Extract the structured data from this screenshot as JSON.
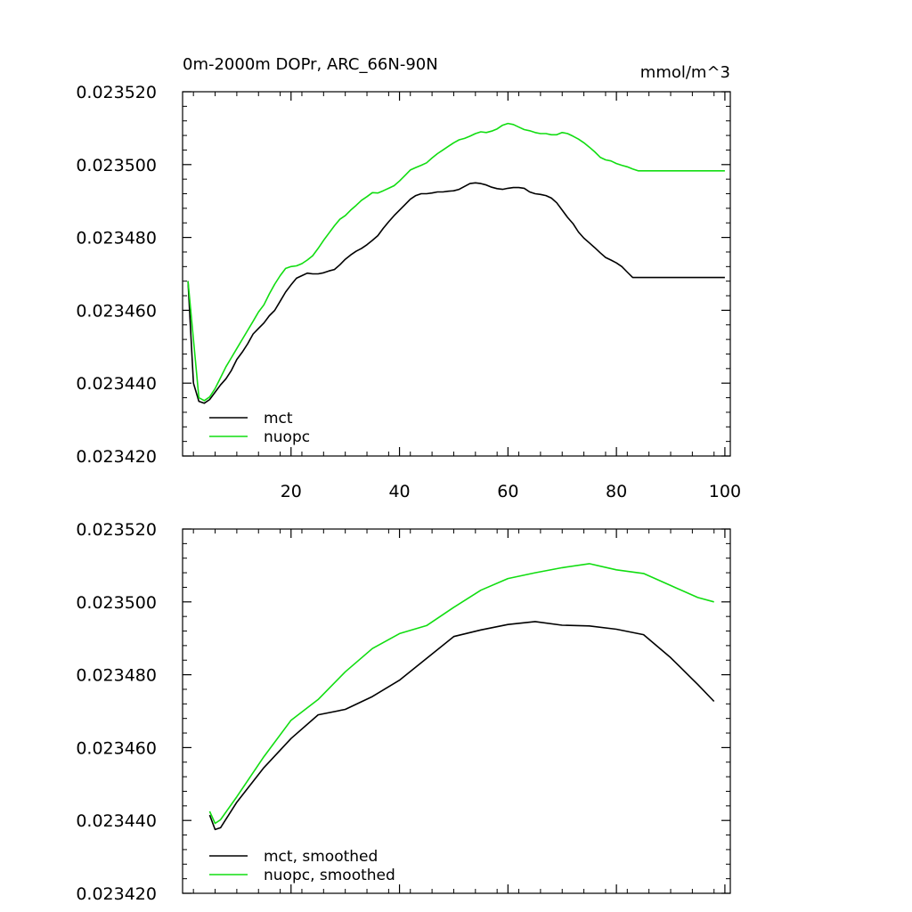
{
  "colors": {
    "mct": "#000000",
    "nuopc": "#11dd11",
    "axis": "#000000"
  },
  "chart_data": [
    {
      "type": "line",
      "title": "0m-2000m DOPr, ARC_66N-90N",
      "units_label": "mmol/m^3",
      "xlim": [
        0,
        101
      ],
      "ylim": [
        0.02342,
        0.02352
      ],
      "xticks": [
        20,
        40,
        60,
        80,
        100
      ],
      "xtick_labels": [
        "20",
        "40",
        "60",
        "80",
        "100"
      ],
      "yticks": [
        0.02342,
        0.02344,
        0.02346,
        0.02348,
        0.0235,
        0.02352
      ],
      "ytick_labels": [
        "0.023420",
        "0.023440",
        "0.023460",
        "0.023480",
        "0.023500",
        "0.023520"
      ],
      "legend_position": "bottom-left",
      "series": [
        {
          "name": "mct",
          "color_key": "mct",
          "x": [
            1,
            2,
            3,
            4,
            5,
            6,
            7,
            8,
            9,
            10,
            11,
            12,
            13,
            14,
            15,
            16,
            17,
            18,
            19,
            20,
            21,
            22,
            23,
            24,
            25,
            26,
            27,
            28,
            29,
            30,
            31,
            32,
            33,
            34,
            35,
            36,
            37,
            38,
            39,
            40,
            41,
            42,
            43,
            44,
            45,
            46,
            47,
            48,
            49,
            50,
            51,
            52,
            53,
            54,
            55,
            56,
            57,
            58,
            59,
            60,
            61,
            62,
            63,
            64,
            65,
            66,
            67,
            68,
            69,
            70,
            71,
            72,
            73,
            74,
            75,
            76,
            77,
            78,
            79,
            80,
            81,
            82,
            83,
            84,
            85,
            86,
            87,
            88,
            89,
            90,
            91,
            92,
            93,
            94,
            95,
            96,
            97,
            98,
            99,
            100
          ],
          "y": [
            0.023468,
            0.02344,
            0.023435,
            0.0234345,
            0.0234355,
            0.0234375,
            0.0234395,
            0.0234412,
            0.0234435,
            0.0234465,
            0.0234485,
            0.0234508,
            0.0234535,
            0.023455,
            0.0234565,
            0.0234585,
            0.02346,
            0.0234625,
            0.023465,
            0.023467,
            0.0234688,
            0.0234695,
            0.0234702,
            0.02347,
            0.02347,
            0.0234703,
            0.0234708,
            0.0234712,
            0.0234725,
            0.023474,
            0.0234752,
            0.0234762,
            0.023477,
            0.023478,
            0.0234792,
            0.0234805,
            0.0234825,
            0.0234843,
            0.023486,
            0.0234875,
            0.023489,
            0.0234905,
            0.0234915,
            0.023492,
            0.023492,
            0.0234922,
            0.0234925,
            0.0234925,
            0.0234927,
            0.0234928,
            0.0234932,
            0.023494,
            0.0234948,
            0.023495,
            0.0234948,
            0.0234944,
            0.0234938,
            0.0234934,
            0.0234932,
            0.0234935,
            0.0234937,
            0.0234937,
            0.0234935,
            0.0234925,
            0.023492,
            0.0234918,
            0.0234915,
            0.0234908,
            0.0234895,
            0.0234875,
            0.0234855,
            0.0234838,
            0.0234815,
            0.0234798,
            0.0234785,
            0.0234772,
            0.0234758,
            0.0234745,
            0.0234738,
            0.023473,
            0.023472,
            0.0234705,
            0.023469,
            0.023469,
            0.023469,
            0.023469,
            0.023469,
            0.023469,
            0.023469,
            0.023469,
            0.023469,
            0.023469,
            0.023469,
            0.023469,
            0.023469,
            0.023469,
            0.023469,
            0.023469,
            0.023469,
            0.023469
          ]
        },
        {
          "name": "nuopc",
          "color_key": "nuopc",
          "x": [
            1,
            3,
            4,
            5,
            6,
            7,
            8,
            9,
            10,
            11,
            12,
            13,
            14,
            15,
            16,
            17,
            18,
            19,
            20,
            21,
            22,
            23,
            24,
            25,
            26,
            27,
            28,
            29,
            30,
            31,
            32,
            33,
            34,
            35,
            36,
            37,
            38,
            39,
            40,
            41,
            42,
            43,
            44,
            45,
            46,
            47,
            48,
            49,
            50,
            51,
            52,
            53,
            54,
            55,
            56,
            57,
            58,
            59,
            60,
            61,
            62,
            63,
            64,
            65,
            66,
            67,
            68,
            69,
            70,
            71,
            72,
            73,
            74,
            75,
            76,
            77,
            78,
            79,
            80,
            81,
            82,
            83,
            84,
            85,
            86,
            87,
            88,
            89,
            90,
            91,
            92,
            93,
            94,
            95,
            96,
            97,
            98,
            99,
            100
          ],
          "y": [
            0.023468,
            0.023436,
            0.0234352,
            0.0234362,
            0.0234385,
            0.0234415,
            0.0234445,
            0.023447,
            0.0234495,
            0.023452,
            0.0234545,
            0.023457,
            0.0234595,
            0.0234615,
            0.0234645,
            0.0234672,
            0.0234695,
            0.0234715,
            0.023472,
            0.0234722,
            0.0234728,
            0.0234738,
            0.023475,
            0.023477,
            0.0234792,
            0.0234812,
            0.0234832,
            0.023485,
            0.023486,
            0.0234875,
            0.0234888,
            0.0234902,
            0.0234912,
            0.0234923,
            0.0234922,
            0.0234928,
            0.0234935,
            0.0234942,
            0.0234955,
            0.023497,
            0.0234985,
            0.0234992,
            0.0234998,
            0.0235005,
            0.0235018,
            0.023503,
            0.023504,
            0.023505,
            0.023506,
            0.0235068,
            0.0235072,
            0.0235078,
            0.0235085,
            0.023509,
            0.0235088,
            0.0235092,
            0.0235098,
            0.0235108,
            0.0235113,
            0.023511,
            0.0235103,
            0.0235096,
            0.0235093,
            0.0235088,
            0.0235085,
            0.0235085,
            0.0235082,
            0.0235082,
            0.0235088,
            0.0235085,
            0.0235078,
            0.023507,
            0.023506,
            0.0235048,
            0.0235035,
            0.023502,
            0.0235013,
            0.023501,
            0.0235003,
            0.0234998,
            0.0234994,
            0.0234988,
            0.0234983,
            0.0234983,
            0.0234983,
            0.0234983,
            0.0234983,
            0.0234983,
            0.0234983,
            0.0234983,
            0.0234983,
            0.0234983,
            0.0234983,
            0.0234983,
            0.0234983,
            0.0234983,
            0.0234983,
            0.0234983,
            0.0234983
          ]
        }
      ]
    },
    {
      "type": "line",
      "xlim": [
        0,
        101
      ],
      "ylim": [
        0.02342,
        0.02352
      ],
      "xticks": [
        20,
        40,
        60,
        80,
        100
      ],
      "yticks": [
        0.02342,
        0.02344,
        0.02346,
        0.02348,
        0.0235,
        0.02352
      ],
      "ytick_labels": [
        "0.023420",
        "0.023440",
        "0.023460",
        "0.023480",
        "0.023500",
        "0.023520"
      ],
      "legend_position": "bottom-left",
      "series": [
        {
          "name": "mct, smoothed",
          "color_key": "mct",
          "x": [
            5,
            6,
            7,
            10,
            15,
            20,
            25,
            30,
            35,
            40,
            45,
            50,
            55,
            60,
            65,
            70,
            75,
            80,
            85,
            90,
            95,
            98
          ],
          "y": [
            0.0234415,
            0.0234375,
            0.023438,
            0.023445,
            0.0234545,
            0.0234625,
            0.023469,
            0.0234705,
            0.023474,
            0.0234785,
            0.0234845,
            0.0234905,
            0.0234923,
            0.0234938,
            0.0234946,
            0.0234936,
            0.0234934,
            0.0234925,
            0.023491,
            0.0234847,
            0.0234773,
            0.0234727
          ]
        },
        {
          "name": "nuopc, smoothed",
          "color_key": "nuopc",
          "x": [
            5,
            6,
            7,
            10,
            15,
            20,
            25,
            30,
            35,
            40,
            45,
            50,
            55,
            60,
            65,
            70,
            75,
            80,
            85,
            90,
            95,
            98
          ],
          "y": [
            0.0234425,
            0.0234392,
            0.0234402,
            0.0234465,
            0.0234575,
            0.0234675,
            0.0234732,
            0.0234808,
            0.0234872,
            0.0234913,
            0.0234935,
            0.0234985,
            0.0235032,
            0.0235064,
            0.023508,
            0.0235094,
            0.0235105,
            0.0235088,
            0.0235078,
            0.0235045,
            0.0235012,
            0.0235
          ]
        }
      ]
    }
  ]
}
